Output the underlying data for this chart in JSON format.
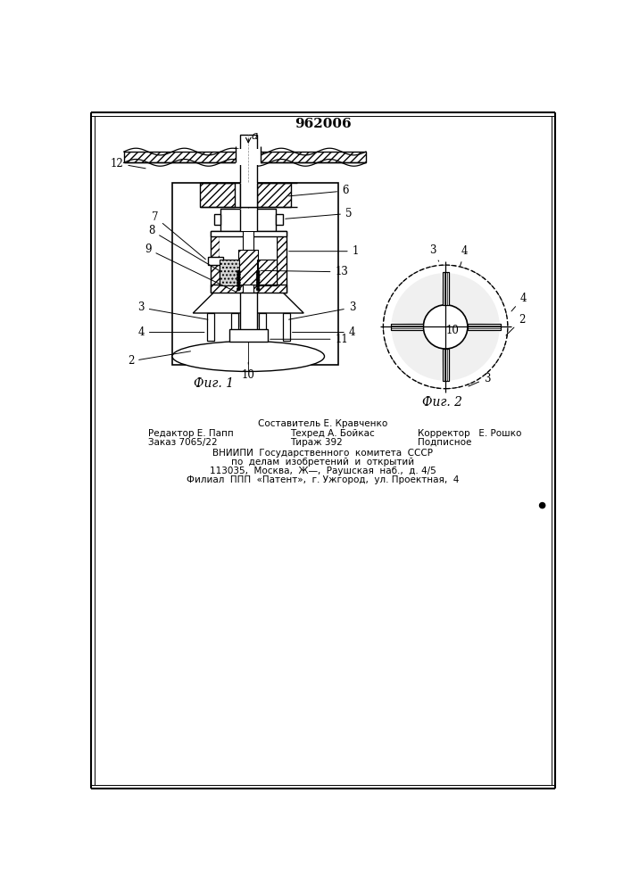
{
  "patent_number": "962006",
  "fig1_caption": "Фиг. 1",
  "fig2_caption": "Фиг. 2",
  "footer_line1": "Составитель Е. Кравченко",
  "footer_line2_left": "Редактор Е. Папп",
  "footer_line2_mid": "Техред А. Бойкас",
  "footer_line2_right": "Корректор   Е. Рошко",
  "footer_line3_left": "Заказ 7065/22",
  "footer_line3_mid": "Тираж 392",
  "footer_line3_right": "Подписное",
  "footer_line4": "ВНИИПИ  Государственного  комитета  СССР",
  "footer_line5": "по  делам  изобретений  и  открытий",
  "footer_line6": "113035,  Москва,  Ж—̵,  Раушская  наб.,  д. 4/5",
  "footer_line7": "Филиал  ППП  «Патент»,  г. Ужгород,  ул. Проектная,  4",
  "bg_color": "#ffffff"
}
